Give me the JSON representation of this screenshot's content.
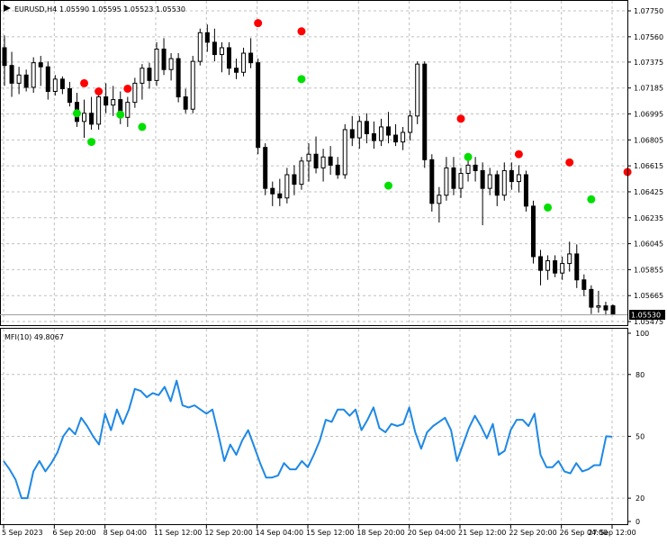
{
  "window": {
    "symbol_header": "EURUSD,H4",
    "ohlc_header": "1.05590 1.05595 1.05523 1.05530",
    "indicator_header": "MFI(10) 49.8067",
    "last_price": "1.05530"
  },
  "colors": {
    "background": "#ffffff",
    "grid": "#c0c0c0",
    "candle": "#000000",
    "mfi_line": "#1e88e5",
    "sell_dot": "#ff0000",
    "buy_dot": "#00e000"
  },
  "chart_data": [
    {
      "type": "candlestick",
      "title": "EURUSD,H4",
      "ylim": [
        1.05475,
        1.0777
      ],
      "y_ticks": [
        "1.07750",
        "1.07560",
        "1.07375",
        "1.07185",
        "1.06995",
        "1.06805",
        "1.06615",
        "1.06425",
        "1.06235",
        "1.06045",
        "1.05855",
        "1.05665",
        "1.05475"
      ],
      "grid": true,
      "candles": [
        {
          "o": 1.0748,
          "h": 1.0757,
          "l": 1.072,
          "c": 1.0735
        },
        {
          "o": 1.0735,
          "h": 1.0745,
          "l": 1.0712,
          "c": 1.0722
        },
        {
          "o": 1.0722,
          "h": 1.0734,
          "l": 1.0714,
          "c": 1.0728
        },
        {
          "o": 1.0728,
          "h": 1.0732,
          "l": 1.0716,
          "c": 1.0719
        },
        {
          "o": 1.0719,
          "h": 1.0741,
          "l": 1.0715,
          "c": 1.0737
        },
        {
          "o": 1.0737,
          "h": 1.0742,
          "l": 1.072,
          "c": 1.0734
        },
        {
          "o": 1.0734,
          "h": 1.0738,
          "l": 1.071,
          "c": 1.0716
        },
        {
          "o": 1.0716,
          "h": 1.0728,
          "l": 1.0713,
          "c": 1.0725
        },
        {
          "o": 1.0725,
          "h": 1.0727,
          "l": 1.0714,
          "c": 1.0718
        },
        {
          "o": 1.0718,
          "h": 1.0723,
          "l": 1.0705,
          "c": 1.0708
        },
        {
          "o": 1.0708,
          "h": 1.0715,
          "l": 1.069,
          "c": 1.0694
        },
        {
          "o": 1.0694,
          "h": 1.071,
          "l": 1.0682,
          "c": 1.07
        },
        {
          "o": 1.07,
          "h": 1.0712,
          "l": 1.0688,
          "c": 1.0692
        },
        {
          "o": 1.0692,
          "h": 1.0715,
          "l": 1.0688,
          "c": 1.0712
        },
        {
          "o": 1.0712,
          "h": 1.0722,
          "l": 1.07,
          "c": 1.0706
        },
        {
          "o": 1.0706,
          "h": 1.072,
          "l": 1.0698,
          "c": 1.071
        },
        {
          "o": 1.071,
          "h": 1.0716,
          "l": 1.0692,
          "c": 1.0697
        },
        {
          "o": 1.0697,
          "h": 1.0712,
          "l": 1.069,
          "c": 1.0708
        },
        {
          "o": 1.0708,
          "h": 1.0726,
          "l": 1.0704,
          "c": 1.0722
        },
        {
          "o": 1.0722,
          "h": 1.0736,
          "l": 1.071,
          "c": 1.0733
        },
        {
          "o": 1.0733,
          "h": 1.0737,
          "l": 1.0718,
          "c": 1.0724
        },
        {
          "o": 1.0724,
          "h": 1.0752,
          "l": 1.072,
          "c": 1.0747
        },
        {
          "o": 1.0747,
          "h": 1.0755,
          "l": 1.0728,
          "c": 1.0732
        },
        {
          "o": 1.0732,
          "h": 1.0744,
          "l": 1.0724,
          "c": 1.074
        },
        {
          "o": 1.074,
          "h": 1.0744,
          "l": 1.0708,
          "c": 1.0712
        },
        {
          "o": 1.0712,
          "h": 1.0718,
          "l": 1.07,
          "c": 1.0703
        },
        {
          "o": 1.0703,
          "h": 1.0742,
          "l": 1.07,
          "c": 1.0738
        },
        {
          "o": 1.0738,
          "h": 1.0762,
          "l": 1.0735,
          "c": 1.0759
        },
        {
          "o": 1.0759,
          "h": 1.0765,
          "l": 1.0745,
          "c": 1.0752
        },
        {
          "o": 1.0752,
          "h": 1.0762,
          "l": 1.0738,
          "c": 1.0743
        },
        {
          "o": 1.0743,
          "h": 1.0752,
          "l": 1.073,
          "c": 1.0748
        },
        {
          "o": 1.0748,
          "h": 1.0752,
          "l": 1.0728,
          "c": 1.0733
        },
        {
          "o": 1.0733,
          "h": 1.074,
          "l": 1.0725,
          "c": 1.073
        },
        {
          "o": 1.073,
          "h": 1.0748,
          "l": 1.0727,
          "c": 1.0744
        },
        {
          "o": 1.0744,
          "h": 1.0755,
          "l": 1.0733,
          "c": 1.0737
        },
        {
          "o": 1.0737,
          "h": 1.074,
          "l": 1.067,
          "c": 1.0675
        },
        {
          "o": 1.0675,
          "h": 1.0678,
          "l": 1.064,
          "c": 1.0645
        },
        {
          "o": 1.0645,
          "h": 1.065,
          "l": 1.0632,
          "c": 1.0641
        },
        {
          "o": 1.0641,
          "h": 1.0652,
          "l": 1.0632,
          "c": 1.0638
        },
        {
          "o": 1.0638,
          "h": 1.066,
          "l": 1.0634,
          "c": 1.0655
        },
        {
          "o": 1.0655,
          "h": 1.0662,
          "l": 1.064,
          "c": 1.0648
        },
        {
          "o": 1.0648,
          "h": 1.0668,
          "l": 1.0644,
          "c": 1.0665
        },
        {
          "o": 1.0665,
          "h": 1.0678,
          "l": 1.065,
          "c": 1.067
        },
        {
          "o": 1.067,
          "h": 1.0683,
          "l": 1.0656,
          "c": 1.066
        },
        {
          "o": 1.066,
          "h": 1.0674,
          "l": 1.065,
          "c": 1.0668
        },
        {
          "o": 1.0668,
          "h": 1.0676,
          "l": 1.0655,
          "c": 1.0662
        },
        {
          "o": 1.0662,
          "h": 1.0668,
          "l": 1.0652,
          "c": 1.0655
        },
        {
          "o": 1.0655,
          "h": 1.0692,
          "l": 1.0652,
          "c": 1.0688
        },
        {
          "o": 1.0688,
          "h": 1.0698,
          "l": 1.0676,
          "c": 1.0682
        },
        {
          "o": 1.0682,
          "h": 1.0698,
          "l": 1.0674,
          "c": 1.0694
        },
        {
          "o": 1.0694,
          "h": 1.07,
          "l": 1.0678,
          "c": 1.0685
        },
        {
          "o": 1.0685,
          "h": 1.0694,
          "l": 1.0674,
          "c": 1.068
        },
        {
          "o": 1.068,
          "h": 1.0696,
          "l": 1.0676,
          "c": 1.069
        },
        {
          "o": 1.069,
          "h": 1.0701,
          "l": 1.0678,
          "c": 1.0684
        },
        {
          "o": 1.0684,
          "h": 1.0692,
          "l": 1.0676,
          "c": 1.0679
        },
        {
          "o": 1.0679,
          "h": 1.069,
          "l": 1.0673,
          "c": 1.0686
        },
        {
          "o": 1.0686,
          "h": 1.0702,
          "l": 1.068,
          "c": 1.0698
        },
        {
          "o": 1.0698,
          "h": 1.0738,
          "l": 1.0692,
          "c": 1.0736
        },
        {
          "o": 1.0736,
          "h": 1.0738,
          "l": 1.066,
          "c": 1.0666
        },
        {
          "o": 1.0666,
          "h": 1.067,
          "l": 1.0628,
          "c": 1.0634
        },
        {
          "o": 1.0634,
          "h": 1.0646,
          "l": 1.062,
          "c": 1.064
        },
        {
          "o": 1.064,
          "h": 1.0668,
          "l": 1.0636,
          "c": 1.066
        },
        {
          "o": 1.066,
          "h": 1.0668,
          "l": 1.064,
          "c": 1.0645
        },
        {
          "o": 1.0645,
          "h": 1.066,
          "l": 1.0638,
          "c": 1.0656
        },
        {
          "o": 1.0656,
          "h": 1.0668,
          "l": 1.065,
          "c": 1.0662
        },
        {
          "o": 1.0662,
          "h": 1.0668,
          "l": 1.065,
          "c": 1.0658
        },
        {
          "o": 1.0658,
          "h": 1.0664,
          "l": 1.0618,
          "c": 1.0645
        },
        {
          "o": 1.0645,
          "h": 1.066,
          "l": 1.064,
          "c": 1.0655
        },
        {
          "o": 1.0655,
          "h": 1.0658,
          "l": 1.0632,
          "c": 1.064
        },
        {
          "o": 1.064,
          "h": 1.0664,
          "l": 1.0636,
          "c": 1.0658
        },
        {
          "o": 1.0658,
          "h": 1.0664,
          "l": 1.0644,
          "c": 1.065
        },
        {
          "o": 1.065,
          "h": 1.0662,
          "l": 1.0642,
          "c": 1.0655
        },
        {
          "o": 1.0655,
          "h": 1.0658,
          "l": 1.0628,
          "c": 1.0632
        },
        {
          "o": 1.0632,
          "h": 1.0636,
          "l": 1.059,
          "c": 1.0595
        },
        {
          "o": 1.0595,
          "h": 1.06,
          "l": 1.0574,
          "c": 1.0585
        },
        {
          "o": 1.0585,
          "h": 1.0596,
          "l": 1.0578,
          "c": 1.0592
        },
        {
          "o": 1.0592,
          "h": 1.0596,
          "l": 1.058,
          "c": 1.0583
        },
        {
          "o": 1.0583,
          "h": 1.0595,
          "l": 1.0578,
          "c": 1.059
        },
        {
          "o": 1.059,
          "h": 1.0606,
          "l": 1.0584,
          "c": 1.0597
        },
        {
          "o": 1.0597,
          "h": 1.0604,
          "l": 1.0572,
          "c": 1.0578
        },
        {
          "o": 1.0578,
          "h": 1.0582,
          "l": 1.0566,
          "c": 1.0571
        },
        {
          "o": 1.0571,
          "h": 1.0574,
          "l": 1.0553,
          "c": 1.0558
        },
        {
          "o": 1.0558,
          "h": 1.057,
          "l": 1.0554,
          "c": 1.0559
        },
        {
          "o": 1.0559,
          "h": 1.0562,
          "l": 1.0552,
          "c": 1.0556
        },
        {
          "o": 1.0559,
          "h": 1.056,
          "l": 1.0552,
          "c": 1.0553
        }
      ],
      "sell_signals": [
        {
          "i": 11,
          "y": 1.0722
        },
        {
          "i": 13,
          "y": 1.0716
        },
        {
          "i": 17,
          "y": 1.0718
        },
        {
          "i": 35,
          "y": 1.0766
        },
        {
          "i": 41,
          "y": 1.076
        },
        {
          "i": 63,
          "y": 1.0696
        },
        {
          "i": 71,
          "y": 1.067
        },
        {
          "i": 78,
          "y": 1.0664
        },
        {
          "i": 86,
          "y": 1.0657
        }
      ],
      "buy_signals": [
        {
          "i": 10,
          "y": 1.07
        },
        {
          "i": 12,
          "y": 1.0679
        },
        {
          "i": 16,
          "y": 1.0699
        },
        {
          "i": 19,
          "y": 1.069
        },
        {
          "i": 41,
          "y": 1.0725
        },
        {
          "i": 53,
          "y": 1.0647
        },
        {
          "i": 64,
          "y": 1.0668
        },
        {
          "i": 75,
          "y": 1.0631
        },
        {
          "i": 81,
          "y": 1.0637
        }
      ]
    },
    {
      "type": "line",
      "title": "MFI(10) 49.8067",
      "ylim": [
        10,
        100
      ],
      "y_ticks": [
        "100",
        "80",
        "50",
        "20",
        "0"
      ],
      "x_tick_labels": [
        "5 Sep 2023",
        "6 Sep 20:00",
        "8 Sep 04:00",
        "11 Sep 12:00",
        "12 Sep 20:00",
        "14 Sep 04:00",
        "15 Sep 12:00",
        "18 Sep 20:00",
        "20 Sep 04:00",
        "21 Sep 12:00",
        "22 Sep 20:00",
        "26 Sep 04:00",
        "27 Sep 12:00"
      ],
      "grid": true,
      "series": [
        {
          "values": [
            38,
            34,
            29,
            20,
            20,
            33,
            38,
            33,
            37,
            42,
            50,
            54,
            51,
            59,
            55,
            50,
            46,
            61,
            53,
            63,
            56,
            63,
            73,
            72,
            69,
            71,
            70,
            74,
            67,
            77,
            65,
            64,
            65,
            63,
            61,
            63,
            51,
            38,
            46,
            41,
            48,
            53,
            45,
            37,
            30,
            30,
            31,
            37,
            34,
            34,
            38,
            35,
            41,
            48,
            58,
            57,
            63,
            63,
            60,
            63,
            53,
            58,
            64,
            54,
            52,
            56,
            55,
            56,
            64,
            52,
            44,
            52,
            55,
            57,
            59,
            53,
            38,
            46,
            54,
            60,
            55,
            49,
            56,
            41,
            43,
            53,
            58,
            58,
            55,
            61,
            41,
            35,
            35,
            38,
            33,
            32,
            37,
            33,
            34,
            36,
            36,
            50,
            49.8067
          ]
        }
      ]
    }
  ]
}
